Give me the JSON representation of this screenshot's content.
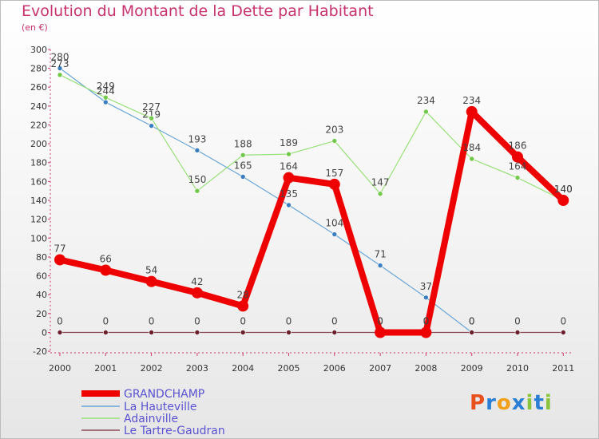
{
  "chart_data": {
    "type": "line",
    "title": "Evolution du Montant de la Dette par Habitant",
    "unit": "(en €)",
    "categories": [
      "2000",
      "2001",
      "2002",
      "2003",
      "2004",
      "2005",
      "2006",
      "2007",
      "2008",
      "2009",
      "2010",
      "2011"
    ],
    "ylim": [
      -20,
      300
    ],
    "yticks": [
      -20,
      0,
      20,
      40,
      60,
      80,
      100,
      120,
      140,
      160,
      180,
      200,
      220,
      240,
      260,
      280,
      300
    ],
    "grid": false,
    "legend_position": "bottom-left",
    "series": [
      {
        "name": "La Hauteville",
        "color": "#6aa5d8",
        "point_color": "#3a7ec0",
        "width": 1.2,
        "values": [
          280,
          244,
          219,
          193,
          165,
          135,
          104,
          71,
          37,
          0,
          null,
          null
        ]
      },
      {
        "name": "Adainville",
        "color": "#99e07a",
        "point_color": "#72c84a",
        "width": 1.2,
        "values": [
          273,
          249,
          227,
          150,
          188,
          189,
          203,
          147,
          234,
          184,
          164,
          140
        ]
      },
      {
        "name": "Le Tartre-Gaudran",
        "color": "#8a4a55",
        "point_color": "#6b1f2d",
        "width": 1.2,
        "values": [
          0,
          0,
          0,
          0,
          0,
          0,
          0,
          0,
          0,
          0,
          0,
          0
        ]
      },
      {
        "name": "GRANDCHAMP",
        "color": "#ee0000",
        "point_color": "#ee0000",
        "width": 8,
        "values": [
          77,
          66,
          54,
          42,
          28,
          164,
          157,
          0,
          0,
          234,
          186,
          140
        ]
      }
    ],
    "legend_order": [
      "GRANDCHAMP",
      "La Hauteville",
      "Adainville",
      "Le Tartre-Gaudran"
    ]
  },
  "logo": {
    "text": "Proxiti",
    "letters": [
      "P",
      "r",
      "o",
      "x",
      "i",
      "t",
      "i"
    ],
    "colors": [
      "#e8501e",
      "#2a7fd4",
      "#f2a01a",
      "#2a7fd4",
      "#8ac43c",
      "#2a7fd4",
      "#8ac43c"
    ]
  }
}
